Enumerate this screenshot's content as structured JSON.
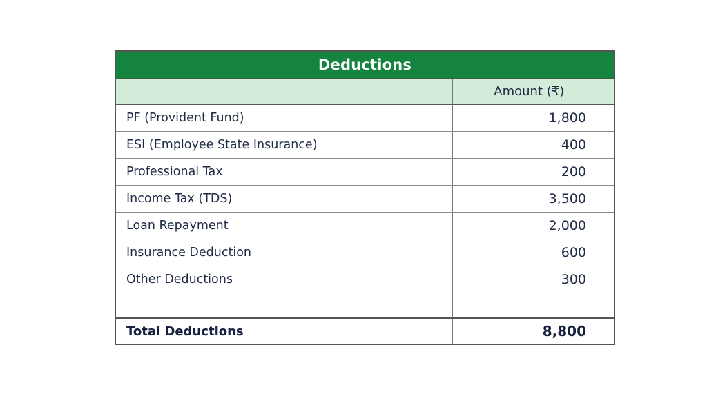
{
  "table": {
    "title": "Deductions",
    "header_color": "#14843f",
    "subheader_color": "#d3ecd9",
    "columns": [
      "",
      "Amount (₹)"
    ],
    "rows": [
      {
        "label": "PF (Provident Fund)",
        "amount": "1,800"
      },
      {
        "label": "ESI (Employee State Insurance)",
        "amount": "400"
      },
      {
        "label": "Professional Tax",
        "amount": "200"
      },
      {
        "label": "Income Tax (TDS)",
        "amount": "3,500"
      },
      {
        "label": "Loan Repayment",
        "amount": "2,000"
      },
      {
        "label": "Insurance Deduction",
        "amount": "600"
      },
      {
        "label": "Other Deductions",
        "amount": "300"
      },
      {
        "label": "",
        "amount": ""
      }
    ],
    "total": {
      "label": "Total Deductions",
      "amount": "8,800"
    }
  }
}
